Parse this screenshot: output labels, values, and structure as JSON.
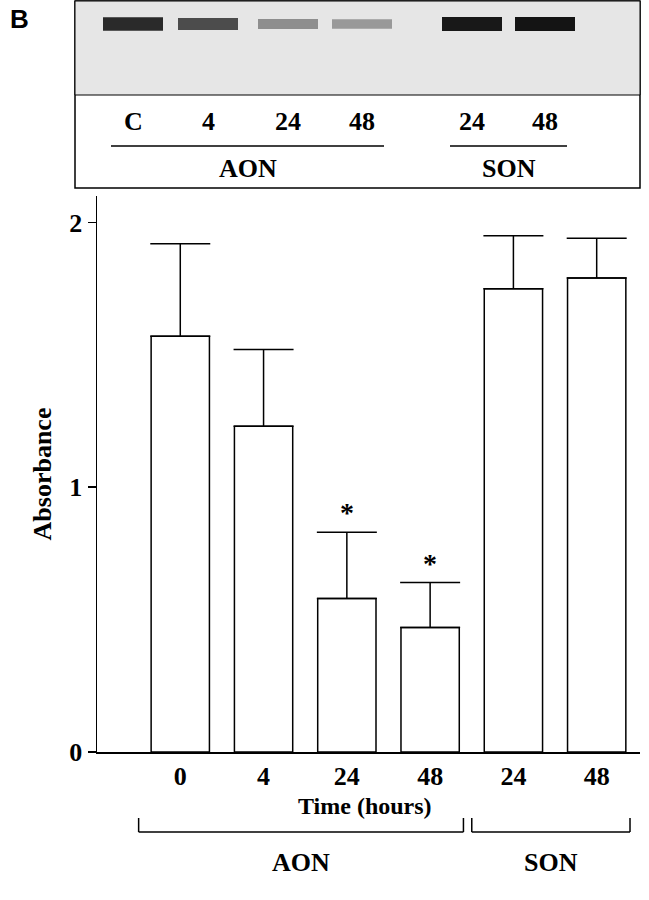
{
  "panel_label": "B",
  "blot": {
    "lanes": [
      "C",
      "4",
      "24",
      "48",
      "24",
      "48"
    ],
    "groups": [
      {
        "label": "AON",
        "lanes": [
          0,
          1,
          2,
          3
        ]
      },
      {
        "label": "SON",
        "lanes": [
          4,
          5
        ]
      }
    ]
  },
  "chart_data": {
    "type": "bar",
    "categories": [
      "0",
      "4",
      "24",
      "48",
      "24",
      "48"
    ],
    "values": [
      1.57,
      1.23,
      0.58,
      0.47,
      1.75,
      1.79
    ],
    "errors": [
      0.35,
      0.29,
      0.25,
      0.17,
      0.2,
      0.15
    ],
    "color": "#ffffff",
    "x_title": "Time (hours)",
    "y_title": "Absorbance",
    "ylim": [
      0,
      2.1
    ],
    "yticks": [
      0,
      1,
      2
    ],
    "grid": false,
    "annotations": [
      {
        "category": 2,
        "text": "*"
      },
      {
        "category": 3,
        "text": "*"
      }
    ],
    "groups": [
      {
        "label": "AON",
        "categories": [
          0,
          1,
          2,
          3
        ]
      },
      {
        "label": "SON",
        "categories": [
          4,
          5
        ]
      }
    ]
  }
}
